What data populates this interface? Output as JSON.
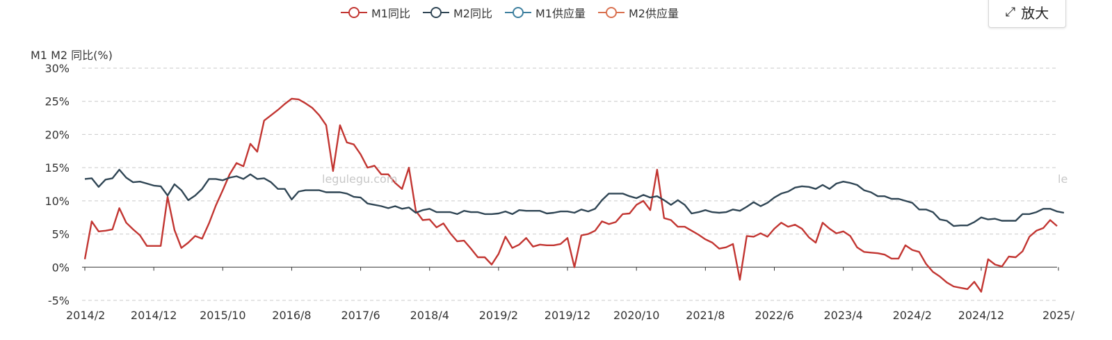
{
  "legend": [
    {
      "label": "M1同比",
      "color": "#c23531"
    },
    {
      "label": "M2同比",
      "color": "#2f4554"
    },
    {
      "label": "M1供应量",
      "color": "#3d7f9e"
    },
    {
      "label": "M2供应量",
      "color": "#d9704f"
    }
  ],
  "toolbar": {
    "zoom_label": "放大",
    "zoom_icon": "expand-arrows-icon"
  },
  "watermark": "legulegu.com",
  "watermark_partial": "le",
  "chart_data": {
    "type": "line",
    "ylabel": "M1 M2 同比(%)",
    "ylim": [
      -5,
      30
    ],
    "yticks": [
      "-5%",
      "0%",
      "5%",
      "10%",
      "15%",
      "20%",
      "25%",
      "30%"
    ],
    "grid": true,
    "legend_position": "top-center",
    "x_start": "2014/2",
    "x_tick_labels": [
      "2014/2",
      "2014/12",
      "2015/10",
      "2016/8",
      "2017/6",
      "2018/4",
      "2019/2",
      "2019/12",
      "2020/10",
      "2021/8",
      "2022/6",
      "2023/4",
      "2024/2",
      "2024/12",
      "2025/"
    ],
    "series": [
      {
        "name": "M1同比",
        "color": "#c23531",
        "values": [
          1.2,
          6.9,
          5.4,
          5.5,
          5.7,
          8.9,
          6.7,
          5.7,
          4.8,
          3.2,
          3.2,
          3.2,
          10.6,
          5.6,
          2.9,
          3.7,
          4.7,
          4.3,
          6.6,
          9.3,
          11.6,
          14.0,
          15.7,
          15.2,
          18.6,
          17.4,
          22.1,
          22.9,
          23.7,
          24.6,
          25.4,
          25.3,
          24.7,
          24.0,
          22.9,
          21.4,
          14.5,
          21.4,
          18.8,
          18.5,
          17.0,
          15.0,
          15.3,
          14.0,
          14.0,
          12.7,
          11.8,
          15.0,
          8.5,
          7.1,
          7.2,
          6.0,
          6.6,
          5.1,
          3.9,
          4.0,
          2.8,
          1.5,
          1.5,
          0.4,
          2.0,
          4.6,
          2.9,
          3.4,
          4.4,
          3.1,
          3.4,
          3.3,
          3.3,
          3.5,
          4.4,
          0.0,
          4.8,
          5.0,
          5.5,
          6.9,
          6.5,
          6.8,
          8.0,
          8.1,
          9.4,
          10.0,
          8.6,
          14.7,
          7.4,
          7.1,
          6.1,
          6.1,
          5.5,
          4.9,
          4.2,
          3.7,
          2.8,
          3.0,
          3.5,
          -1.9,
          4.7,
          4.6,
          5.1,
          4.6,
          5.8,
          6.7,
          6.1,
          6.4,
          5.8,
          4.5,
          3.7,
          6.7,
          5.8,
          5.1,
          5.4,
          4.7,
          3.0,
          2.3,
          2.2,
          2.1,
          1.9,
          1.3,
          1.3,
          3.3,
          2.6,
          2.3,
          0.5,
          -0.7,
          -1.4,
          -2.3,
          -2.9,
          -3.1,
          -3.3,
          -2.2,
          -3.7,
          1.2,
          0.4,
          0.1,
          1.6,
          1.5,
          2.4,
          4.6,
          5.5,
          5.9,
          7.1,
          6.2
        ]
      },
      {
        "name": "M2同比",
        "color": "#2f4554",
        "values": [
          13.3,
          13.4,
          12.1,
          13.2,
          13.4,
          14.7,
          13.5,
          12.8,
          12.9,
          12.6,
          12.3,
          12.2,
          10.8,
          12.5,
          11.6,
          10.1,
          10.8,
          11.8,
          13.3,
          13.3,
          13.1,
          13.5,
          13.7,
          13.3,
          14.0,
          13.3,
          13.4,
          12.8,
          11.8,
          11.8,
          10.2,
          11.4,
          11.6,
          11.6,
          11.6,
          11.3,
          11.3,
          11.3,
          11.1,
          10.6,
          10.5,
          9.6,
          9.4,
          9.2,
          8.9,
          9.2,
          8.8,
          9.0,
          8.2,
          8.6,
          8.8,
          8.3,
          8.3,
          8.3,
          8.0,
          8.5,
          8.3,
          8.3,
          8.0,
          8.0,
          8.1,
          8.4,
          8.0,
          8.6,
          8.5,
          8.5,
          8.5,
          8.1,
          8.2,
          8.4,
          8.4,
          8.2,
          8.7,
          8.4,
          8.8,
          10.1,
          11.1,
          11.1,
          11.1,
          10.7,
          10.4,
          10.9,
          10.5,
          10.7,
          10.1,
          9.4,
          10.1,
          9.4,
          8.1,
          8.3,
          8.6,
          8.3,
          8.2,
          8.3,
          8.7,
          8.5,
          9.1,
          9.8,
          9.2,
          9.7,
          10.5,
          11.1,
          11.4,
          12.0,
          12.2,
          12.1,
          11.8,
          12.4,
          11.8,
          12.6,
          12.9,
          12.7,
          12.4,
          11.6,
          11.3,
          10.7,
          10.7,
          10.3,
          10.3,
          10.0,
          9.7,
          8.7,
          8.7,
          8.3,
          7.2,
          7.0,
          6.2,
          6.3,
          6.3,
          6.8,
          7.5,
          7.2,
          7.3,
          7.0,
          7.0,
          7.0,
          8.0,
          8.0,
          8.3,
          8.8,
          8.8,
          8.4,
          8.2
        ]
      }
    ]
  }
}
